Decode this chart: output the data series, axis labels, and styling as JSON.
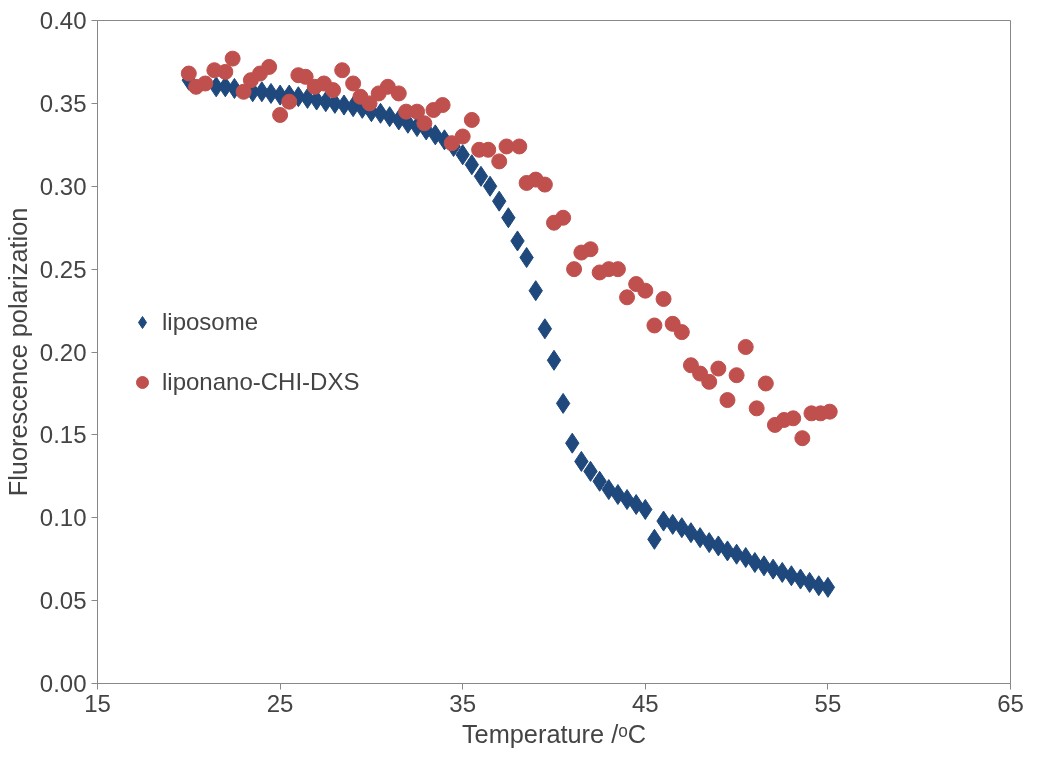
{
  "chart_data": {
    "type": "scatter",
    "xlabel": "Temperature /ᵒC",
    "ylabel": "Fluorescence polarization",
    "xlim": [
      15,
      65
    ],
    "xticks": [
      15,
      25,
      35,
      45,
      55,
      65
    ],
    "ylim": [
      0,
      0.4
    ],
    "yticks": [
      {
        "value": 0,
        "label": "0.00"
      },
      {
        "value": 0.05,
        "label": "0.05"
      },
      {
        "value": 0.1,
        "label": "0.10"
      },
      {
        "value": 0.15,
        "label": "0.15"
      },
      {
        "value": 0.2,
        "label": "0.20"
      },
      {
        "value": 0.25,
        "label": "0.25"
      },
      {
        "value": 0.3,
        "label": "0.30"
      },
      {
        "value": 0.35,
        "label": "0.35"
      },
      {
        "value": 0.4,
        "label": "0.40"
      }
    ],
    "grid": false,
    "legend": "left",
    "series": [
      {
        "name": "liposome",
        "color": "#1f497d",
        "marker": "diamond",
        "x": [
          20,
          20.5,
          21,
          21.5,
          22,
          22.5,
          23,
          23.5,
          24,
          24.5,
          25,
          25.5,
          26,
          26.5,
          27,
          27.5,
          28,
          28.5,
          29,
          29.5,
          30,
          30.5,
          31,
          31.5,
          32,
          32.5,
          33,
          33.5,
          34,
          34.5,
          35,
          35.5,
          36,
          36.5,
          37,
          37.5,
          38,
          38.5,
          39,
          39.5,
          40,
          40.5,
          41,
          41.5,
          42,
          42.5,
          43,
          43.5,
          44,
          44.5,
          45,
          45.5,
          46,
          46.5,
          47,
          47.5,
          48,
          48.5,
          49,
          49.5,
          50,
          50.5,
          51,
          51.5,
          52,
          52.5,
          53,
          53.5,
          54,
          54.5,
          55
        ],
        "values": [
          0.364,
          null,
          null,
          0.36,
          0.36,
          0.359,
          null,
          0.357,
          0.357,
          0.356,
          0.355,
          0.355,
          0.354,
          0.353,
          0.352,
          0.351,
          0.35,
          0.349,
          0.348,
          0.347,
          0.345,
          0.344,
          0.342,
          0.34,
          0.338,
          0.336,
          0.334,
          0.331,
          0.328,
          0.324,
          0.319,
          0.313,
          0.306,
          0.3,
          0.291,
          0.281,
          0.267,
          0.257,
          0.237,
          0.214,
          0.195,
          0.169,
          0.145,
          0.134,
          0.128,
          0.122,
          0.117,
          0.114,
          0.111,
          0.108,
          0.105,
          0.087,
          0.098,
          0.096,
          0.094,
          0.091,
          0.088,
          0.085,
          0.083,
          0.08,
          0.078,
          0.076,
          0.073,
          0.071,
          0.069,
          0.067,
          0.065,
          0.063,
          0.061,
          0.059,
          0.058
        ]
      },
      {
        "name": "liponano-CHI-DXS",
        "color": "#c0504d",
        "marker": "circle",
        "x": [
          20,
          20.4,
          20.9,
          21.4,
          22,
          22.4,
          23,
          23.4,
          23.9,
          24.4,
          25,
          25.5,
          26,
          26.4,
          26.9,
          27.4,
          27.9,
          28.4,
          29,
          29.4,
          29.9,
          30.4,
          30.9,
          31.5,
          31.9,
          32.5,
          32.9,
          33.4,
          33.9,
          34.4,
          35,
          35.5,
          35.9,
          36.4,
          37,
          37.4,
          38.1,
          38.5,
          39,
          39.5,
          40,
          40.5,
          41.1,
          41.5,
          42,
          42.5,
          43,
          43.5,
          44,
          44.5,
          45,
          45.5,
          46,
          46.5,
          47,
          47.5,
          48,
          48.5,
          49,
          49.5,
          50,
          50.5,
          51.1,
          51.6,
          52.1,
          52.6,
          53.1,
          53.6,
          54.1,
          54.6,
          55.1
        ],
        "values": [
          0.368,
          0.36,
          0.362,
          0.37,
          0.369,
          0.377,
          0.357,
          0.364,
          0.368,
          0.372,
          0.343,
          0.351,
          0.367,
          0.366,
          0.36,
          0.362,
          0.358,
          0.37,
          0.362,
          0.354,
          0.35,
          0.356,
          0.36,
          0.356,
          0.345,
          0.345,
          0.338,
          0.346,
          0.349,
          0.326,
          0.33,
          0.34,
          0.322,
          0.322,
          0.315,
          0.324,
          0.324,
          0.302,
          0.304,
          0.301,
          0.278,
          0.281,
          0.25,
          0.26,
          0.262,
          0.248,
          0.25,
          0.25,
          0.233,
          0.241,
          0.237,
          0.216,
          0.232,
          0.217,
          0.212,
          0.192,
          0.187,
          0.182,
          0.19,
          0.171,
          0.186,
          0.203,
          0.166,
          0.181,
          0.156,
          0.159,
          0.16,
          0.148,
          0.163,
          0.163,
          0.164
        ]
      }
    ]
  }
}
